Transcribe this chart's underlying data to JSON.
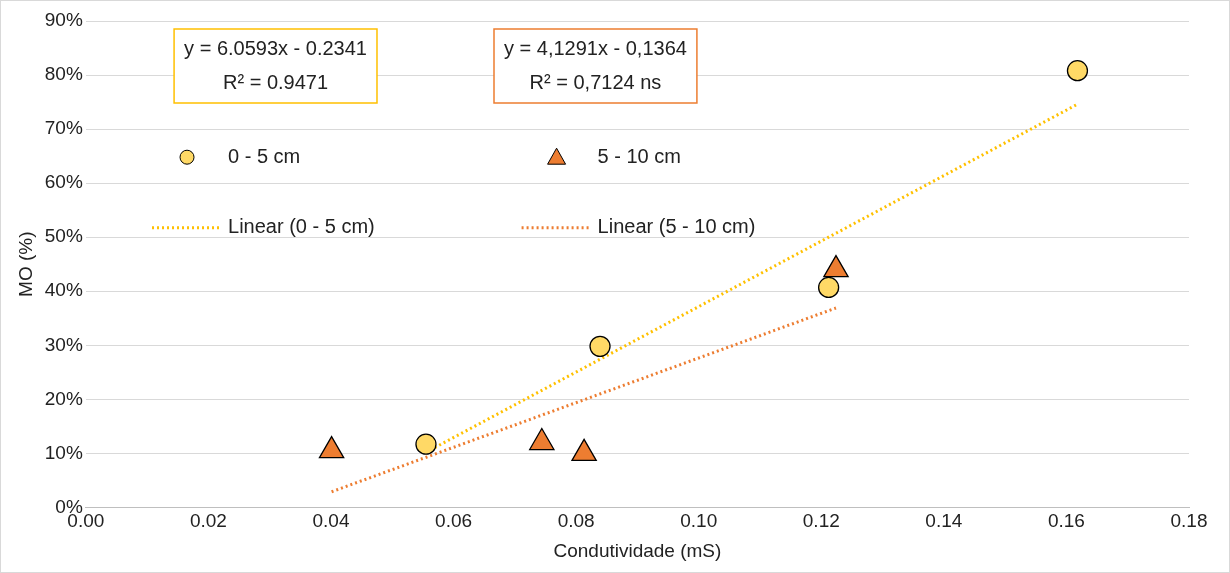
{
  "chart_data": {
    "type": "scatter",
    "xlabel": "Condutividade (mS)",
    "ylabel": "MO (%)",
    "xlim": [
      0,
      0.18
    ],
    "xticks": [
      {
        "value": 0,
        "label": "0.00"
      },
      {
        "value": 0.02,
        "label": "0.02"
      },
      {
        "value": 0.04,
        "label": "0.04"
      },
      {
        "value": 0.06,
        "label": "0.06"
      },
      {
        "value": 0.08,
        "label": "0.08"
      },
      {
        "value": 0.1,
        "label": "0.10"
      },
      {
        "value": 0.12,
        "label": "0.12"
      },
      {
        "value": 0.14,
        "label": "0.14"
      },
      {
        "value": 0.16,
        "label": "0.16"
      },
      {
        "value": 0.18,
        "label": "0.18"
      }
    ],
    "ylim": [
      0,
      0.9
    ],
    "yticks": [
      {
        "value": 0,
        "label": "0%"
      },
      {
        "value": 0.1,
        "label": "10%"
      },
      {
        "value": 0.2,
        "label": "20%"
      },
      {
        "value": 0.3,
        "label": "30%"
      },
      {
        "value": 0.4,
        "label": "40%"
      },
      {
        "value": 0.5,
        "label": "50%"
      },
      {
        "value": 0.6,
        "label": "60%"
      },
      {
        "value": 0.7,
        "label": "70%"
      },
      {
        "value": 0.8,
        "label": "80%"
      },
      {
        "value": 0.9,
        "label": "90%"
      }
    ],
    "grid": "y",
    "legend": "top left",
    "series": [
      {
        "name": "0 - 5 cm",
        "marker": "circle",
        "color": "#ffd966",
        "x": [
          0.0555,
          0.0839,
          0.1212,
          0.1618
        ],
        "values": [
          0.117,
          0.298,
          0.407,
          0.808
        ]
      },
      {
        "name": "5 - 10 cm",
        "marker": "triangle",
        "color": "#ed7d31",
        "x": [
          0.0401,
          0.0744,
          0.0813,
          0.1224
        ],
        "values": [
          0.105,
          0.12,
          0.1,
          0.44
        ]
      },
      {
        "name": "Linear (0 - 5 cm)",
        "type": "line",
        "marker": "none",
        "line_style": "dotted",
        "color": "#ffc000",
        "x": [
          0.0555,
          0.1618
        ],
        "values": [
          0.102,
          0.746
        ]
      },
      {
        "name": "Linear (5 - 10 cm)",
        "type": "line",
        "marker": "none",
        "line_style": "dotted",
        "color": "#ed7d31",
        "x": [
          0.0401,
          0.1224
        ],
        "values": [
          0.029,
          0.369
        ]
      }
    ],
    "annotations": [
      "y = 6.0593x - 0.2341",
      "R² = 0.9471",
      "y = 4,1291x - 0,1364",
      "R² = 0,7124 ns"
    ]
  }
}
